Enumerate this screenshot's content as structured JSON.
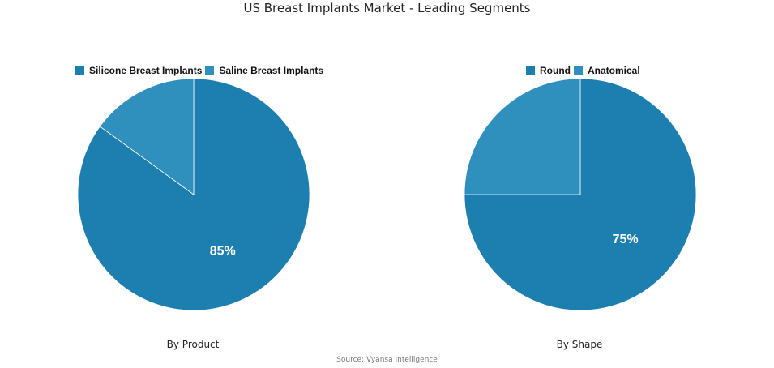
{
  "title": "US Breast Implants Market - Leading Segments",
  "source": "Source: Vyansa Intelligence",
  "colors": {
    "primary": "#1c7fb0",
    "secondary": "#2f8fbd",
    "label": "#ffffff"
  },
  "chart_data": [
    {
      "type": "pie",
      "title": "By Product",
      "categories": [
        "Silicone Breast Implants",
        "Saline Breast Implants"
      ],
      "values": [
        85,
        15
      ],
      "data_labels": [
        "85%",
        ""
      ],
      "legend_position": "top"
    },
    {
      "type": "pie",
      "title": "By Shape",
      "categories": [
        "Round",
        "Anatomical"
      ],
      "values": [
        75,
        25
      ],
      "data_labels": [
        "75%",
        ""
      ],
      "legend_position": "top"
    }
  ]
}
